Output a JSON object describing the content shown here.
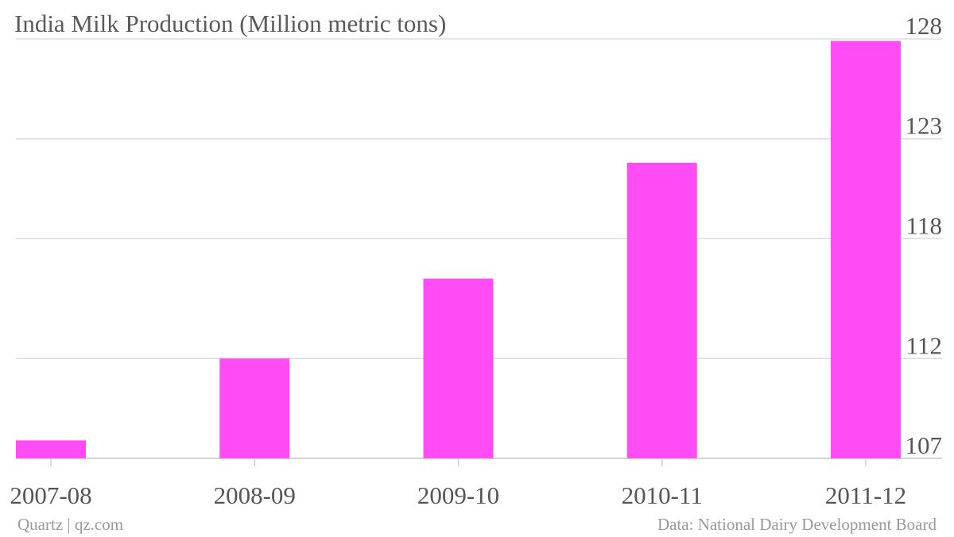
{
  "colors": {
    "bar": "#ff4cf5",
    "grid": "#dddddd",
    "text": "#555555",
    "source": "#999999"
  },
  "footer": {
    "left": "Quartz | qz.com",
    "right": "Data: National Dairy Development Board"
  },
  "chart_data": {
    "type": "bar",
    "title": "India Milk Production (Million metric tons)",
    "xlabel": "",
    "ylabel": "",
    "categories": [
      "2007-08",
      "2008-09",
      "2009-10",
      "2010-11",
      "2011-12"
    ],
    "series": [
      {
        "values": [
          107.9,
          112.0,
          116.0,
          121.8,
          127.9
        ]
      }
    ],
    "yticks": [
      107,
      112,
      118,
      123,
      128
    ],
    "ylim": [
      107,
      128
    ],
    "grid": true,
    "yaxis_position": "right",
    "legend": "none"
  }
}
